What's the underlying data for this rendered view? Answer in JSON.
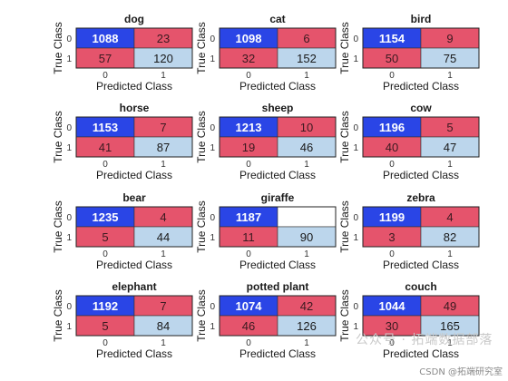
{
  "chart_data": [
    {
      "type": "heatmap",
      "title": "dog",
      "xlabel": "Predicted Class",
      "ylabel": "True Class",
      "x_ticks": [
        "0",
        "1"
      ],
      "y_ticks": [
        "0",
        "1"
      ],
      "matrix": [
        [
          1088,
          23
        ],
        [
          57,
          120
        ]
      ]
    },
    {
      "type": "heatmap",
      "title": "cat",
      "xlabel": "Predicted Class",
      "ylabel": "True Class",
      "x_ticks": [
        "0",
        "1"
      ],
      "y_ticks": [
        "0",
        "1"
      ],
      "matrix": [
        [
          1098,
          6
        ],
        [
          32,
          152
        ]
      ]
    },
    {
      "type": "heatmap",
      "title": "bird",
      "xlabel": "Predicted Class",
      "ylabel": "True Class",
      "x_ticks": [
        "0",
        "1"
      ],
      "y_ticks": [
        "0",
        "1"
      ],
      "matrix": [
        [
          1154,
          9
        ],
        [
          50,
          75
        ]
      ]
    },
    {
      "type": "heatmap",
      "title": "horse",
      "xlabel": "Predicted Class",
      "ylabel": "True Class",
      "x_ticks": [
        "0",
        "1"
      ],
      "y_ticks": [
        "0",
        "1"
      ],
      "matrix": [
        [
          1153,
          7
        ],
        [
          41,
          87
        ]
      ]
    },
    {
      "type": "heatmap",
      "title": "sheep",
      "xlabel": "Predicted Class",
      "ylabel": "True Class",
      "x_ticks": [
        "0",
        "1"
      ],
      "y_ticks": [
        "0",
        "1"
      ],
      "matrix": [
        [
          1213,
          10
        ],
        [
          19,
          46
        ]
      ]
    },
    {
      "type": "heatmap",
      "title": "cow",
      "xlabel": "Predicted Class",
      "ylabel": "True Class",
      "x_ticks": [
        "0",
        "1"
      ],
      "y_ticks": [
        "0",
        "1"
      ],
      "matrix": [
        [
          1196,
          5
        ],
        [
          40,
          47
        ]
      ]
    },
    {
      "type": "heatmap",
      "title": "bear",
      "xlabel": "Predicted Class",
      "ylabel": "True Class",
      "x_ticks": [
        "0",
        "1"
      ],
      "y_ticks": [
        "0",
        "1"
      ],
      "matrix": [
        [
          1235,
          4
        ],
        [
          5,
          44
        ]
      ]
    },
    {
      "type": "heatmap",
      "title": "giraffe",
      "xlabel": "Predicted Class",
      "ylabel": "True Class",
      "x_ticks": [
        "0",
        "1"
      ],
      "y_ticks": [
        "0",
        "1"
      ],
      "matrix": [
        [
          1187,
          null
        ],
        [
          11,
          90
        ]
      ]
    },
    {
      "type": "heatmap",
      "title": "zebra",
      "xlabel": "Predicted Class",
      "ylabel": "True Class",
      "x_ticks": [
        "0",
        "1"
      ],
      "y_ticks": [
        "0",
        "1"
      ],
      "matrix": [
        [
          1199,
          4
        ],
        [
          3,
          82
        ]
      ]
    },
    {
      "type": "heatmap",
      "title": "elephant",
      "xlabel": "Predicted Class",
      "ylabel": "True Class",
      "x_ticks": [
        "0",
        "1"
      ],
      "y_ticks": [
        "0",
        "1"
      ],
      "matrix": [
        [
          1192,
          7
        ],
        [
          5,
          84
        ]
      ]
    },
    {
      "type": "heatmap",
      "title": "potted plant",
      "xlabel": "Predicted Class",
      "ylabel": "True Class",
      "x_ticks": [
        "0",
        "1"
      ],
      "y_ticks": [
        "0",
        "1"
      ],
      "matrix": [
        [
          1074,
          42
        ],
        [
          46,
          126
        ]
      ]
    },
    {
      "type": "heatmap",
      "title": "couch",
      "xlabel": "Predicted Class",
      "ylabel": "True Class",
      "x_ticks": [
        "0",
        "1"
      ],
      "y_ticks": [
        "0",
        "1"
      ],
      "matrix": [
        [
          1044,
          49
        ],
        [
          30,
          165
        ]
      ]
    }
  ],
  "colors": {
    "true_negative": "#2a45e6",
    "error": "#e5546c",
    "true_positive": "#bcd6ec",
    "empty": "#ffffff"
  },
  "watermark": {
    "main": "公众号 · 拓端数据部落",
    "credit": "CSDN @拓端研究室"
  }
}
